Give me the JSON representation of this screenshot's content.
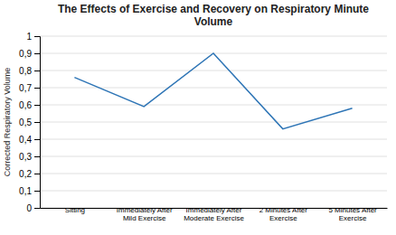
{
  "chart_data": {
    "type": "line",
    "title": "The Effects of Exercise and Recovery on Respiratory Minute\nVolume",
    "ylabel": "Corrected Respiratory Volume",
    "categories": [
      "Sitting",
      "Immediately After\nMild Exercise",
      "Immediately After\nModerate Exercise",
      "2 Minutes After\nExercise",
      "5 Minutes After\nExercise"
    ],
    "values": [
      0.76,
      0.59,
      0.9,
      0.46,
      0.58
    ],
    "color": "#2E75B6",
    "ylim": [
      0,
      1.0
    ],
    "yticks": [
      0,
      {
        "value": 0.1,
        "label": "0,1"
      },
      {
        "value": 0.2,
        "label": "0,2"
      },
      {
        "value": 0.3,
        "label": "0,3"
      },
      {
        "value": 0.4,
        "label": "0,4"
      },
      {
        "value": 0.5,
        "label": "0,5"
      },
      {
        "value": 0.6,
        "label": "0,6"
      },
      {
        "value": 0.7,
        "label": "0,7"
      },
      {
        "value": 0.8,
        "label": "0,8"
      },
      {
        "value": 0.9,
        "label": "0,9"
      },
      1
    ],
    "grid": true
  }
}
